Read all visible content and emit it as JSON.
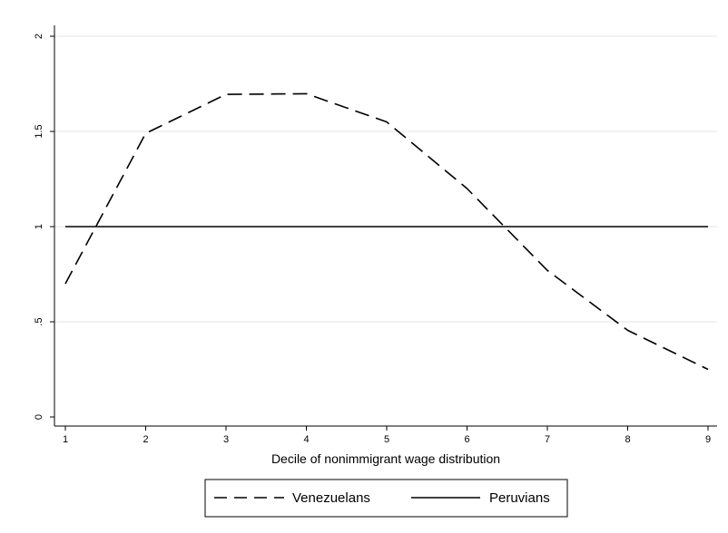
{
  "chart_data": {
    "type": "line",
    "title": "",
    "xlabel": "Decile of nonimmigrant wage distribution",
    "ylabel": "",
    "x": [
      1,
      2,
      3,
      4,
      5,
      6,
      7,
      8,
      9
    ],
    "xticks": [
      "1",
      "2",
      "3",
      "4",
      "5",
      "6",
      "7",
      "8",
      "9"
    ],
    "yticks": [
      "0",
      ".5",
      "1",
      "1.5",
      "2"
    ],
    "ytick_values": [
      0,
      0.5,
      1,
      1.5,
      2
    ],
    "xlim": [
      1,
      9
    ],
    "ylim": [
      0,
      2
    ],
    "grid": true,
    "legend_position": "bottom",
    "series": [
      {
        "name": "Venezuelans",
        "style": "dashed",
        "color": "#000000",
        "values": [
          0.7,
          1.49,
          1.695,
          1.698,
          1.55,
          1.2,
          0.77,
          0.455,
          0.25
        ]
      },
      {
        "name": "Peruvians",
        "style": "solid",
        "color": "#000000",
        "values": [
          1,
          1,
          1,
          1,
          1,
          1,
          1,
          1,
          1
        ]
      }
    ]
  }
}
